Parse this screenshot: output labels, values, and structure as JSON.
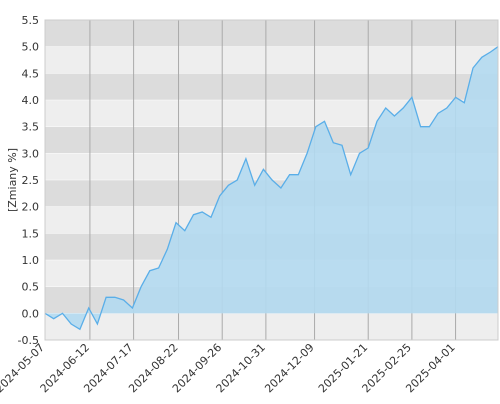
{
  "chart_data": {
    "type": "area",
    "y_label": "[Zmiany %]",
    "x": [
      "2024-05-07",
      "2024-05-14",
      "2024-05-21",
      "2024-05-28",
      "2024-06-04",
      "2024-06-11",
      "2024-06-18",
      "2024-06-25",
      "2024-07-02",
      "2024-07-09",
      "2024-07-16",
      "2024-07-23",
      "2024-07-30",
      "2024-08-06",
      "2024-08-13",
      "2024-08-20",
      "2024-08-27",
      "2024-09-03",
      "2024-09-10",
      "2024-09-17",
      "2024-09-24",
      "2024-10-01",
      "2024-10-08",
      "2024-10-15",
      "2024-10-22",
      "2024-10-29",
      "2024-11-05",
      "2024-11-12",
      "2024-11-19",
      "2024-11-26",
      "2024-12-03",
      "2024-12-10",
      "2024-12-17",
      "2024-12-24",
      "2024-12-31",
      "2025-01-07",
      "2025-01-14",
      "2025-01-21",
      "2025-01-28",
      "2025-02-04",
      "2025-02-11",
      "2025-02-18",
      "2025-02-25",
      "2025-03-04",
      "2025-03-11",
      "2025-03-18",
      "2025-03-25",
      "2025-04-01",
      "2025-04-08",
      "2025-04-15",
      "2025-04-22",
      "2025-04-29",
      "2025-05-05"
    ],
    "values": [
      0.0,
      -0.1,
      0.0,
      -0.2,
      -0.3,
      0.1,
      -0.2,
      0.3,
      0.3,
      0.25,
      0.1,
      0.5,
      0.8,
      0.85,
      1.2,
      1.7,
      1.55,
      1.85,
      1.9,
      1.8,
      2.2,
      2.4,
      2.5,
      2.9,
      2.4,
      2.7,
      2.5,
      2.35,
      2.6,
      2.6,
      3.0,
      3.5,
      3.6,
      3.2,
      3.15,
      2.6,
      3.0,
      3.1,
      3.6,
      3.85,
      3.7,
      3.85,
      4.05,
      3.5,
      3.5,
      3.75,
      3.85,
      4.05,
      3.95,
      4.6,
      4.8,
      4.9,
      5.0
    ],
    "color": "#5aaee8",
    "fill": "#b3d9ef",
    "xlim": [
      "2024-05-07",
      "2025-05-05"
    ],
    "xticks": [
      "2024-05-07",
      "2024-06-12",
      "2024-07-17",
      "2024-08-22",
      "2024-09-26",
      "2024-10-31",
      "2024-12-09",
      "2025-01-21",
      "2025-02-25",
      "2025-04-01"
    ],
    "ylim": [
      -0.5,
      5.5
    ],
    "yticks": [
      -0.5,
      {
        "value": 0,
        "label": "0.0"
      },
      0.5,
      {
        "value": 1,
        "label": "1.0"
      },
      1.5,
      {
        "value": 2,
        "label": "2.0"
      },
      2.5,
      {
        "value": 3,
        "label": "3.0"
      },
      3.5,
      {
        "value": 4,
        "label": "4.0"
      },
      4.5,
      {
        "value": 5,
        "label": "5.0"
      },
      5.5
    ],
    "grid": true
  }
}
